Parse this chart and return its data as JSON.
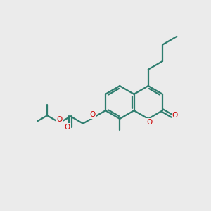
{
  "bg_color": "#ebebeb",
  "bond_color": "#2d7d6e",
  "heteroatom_color": "#cc0000",
  "line_width": 1.6,
  "figsize": [
    3.0,
    3.0
  ],
  "dpi": 100,
  "xlim": [
    0,
    10
  ],
  "ylim": [
    0,
    10
  ]
}
